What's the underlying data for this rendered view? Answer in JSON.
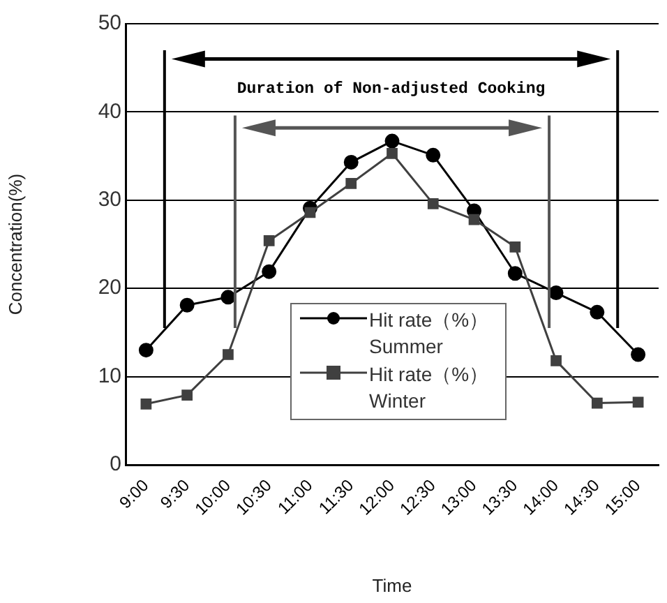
{
  "chart_data": {
    "type": "line",
    "xlabel": "Time",
    "ylabel": "Concentration(%)",
    "categories": [
      "9:00",
      "9:30",
      "10:00",
      "10:30",
      "11:00",
      "11:30",
      "12:00",
      "12:30",
      "13:00",
      "13:30",
      "14:00",
      "14:30",
      "15:00"
    ],
    "series": [
      {
        "name": "Hit rate（%） Summer",
        "color": "#000000",
        "marker": "circle",
        "values": [
          13.0,
          18.1,
          19.0,
          21.9,
          29.1,
          34.3,
          36.7,
          35.1,
          28.8,
          21.7,
          19.5,
          17.3,
          12.5
        ]
      },
      {
        "name": "Hit rate（%） Winter",
        "color": "#404040",
        "marker": "square",
        "values": [
          6.9,
          7.9,
          12.5,
          25.4,
          28.6,
          31.9,
          35.3,
          29.6,
          27.8,
          24.7,
          11.8,
          7.0,
          7.1
        ]
      }
    ],
    "ylim": [
      0,
      50
    ],
    "yticks": [
      0,
      10,
      20,
      30,
      40,
      50
    ],
    "grid": "y",
    "legend": "bottom",
    "line_style": "solid",
    "annotations": [
      "Duration of Non-adjusted Cooking"
    ]
  }
}
